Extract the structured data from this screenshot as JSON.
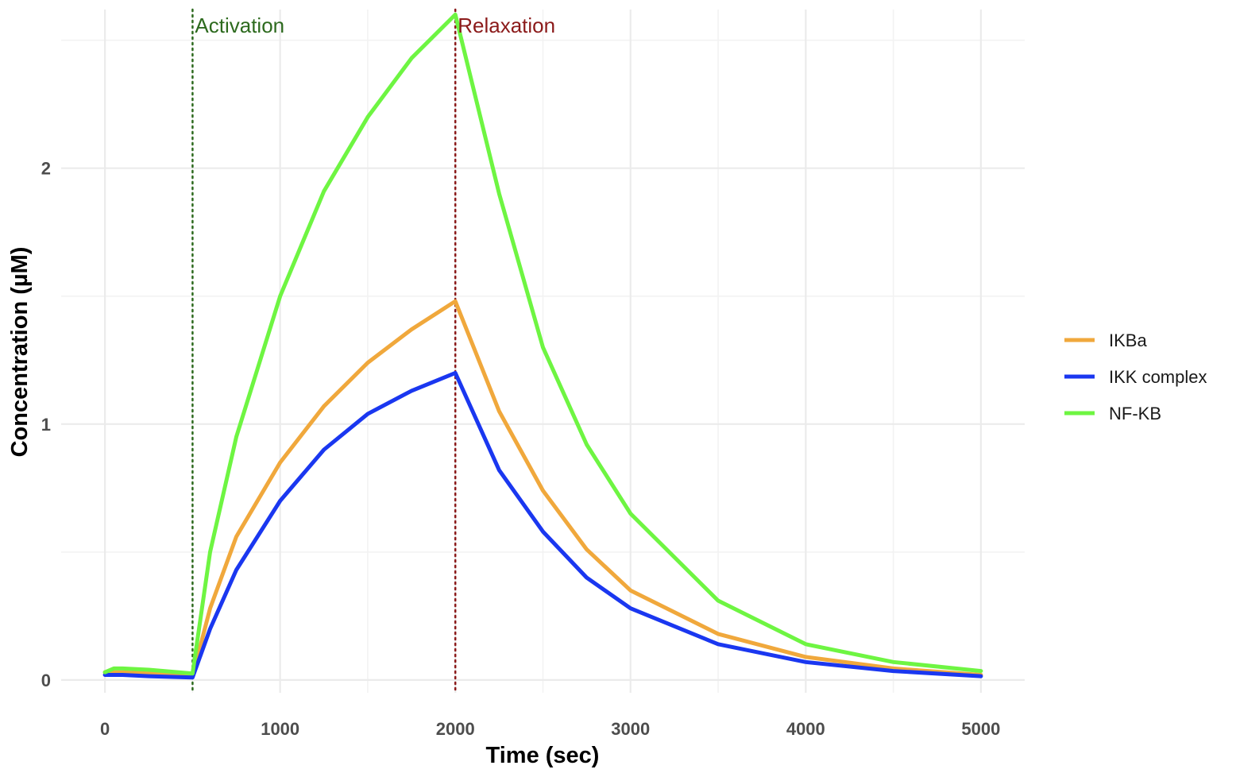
{
  "chart_data": {
    "type": "line",
    "xlabel": "Time (sec)",
    "ylabel": "Concentration (µM)",
    "xlim": [
      -250,
      5250
    ],
    "ylim": [
      -0.05,
      2.62
    ],
    "x_ticks": [
      0,
      1000,
      2000,
      3000,
      4000,
      5000
    ],
    "x_tick_labels": [
      "0",
      "1000",
      "2000",
      "3000",
      "4000",
      "5000"
    ],
    "y_ticks": [
      0,
      1,
      2
    ],
    "y_tick_labels": [
      "0",
      "1",
      "2"
    ],
    "grid": true,
    "legend_position": "right",
    "annotations": [
      {
        "label": "Activation",
        "x": 500,
        "color": "#2d6a1e"
      },
      {
        "label": "Relaxation",
        "x": 2000,
        "color": "#8b1a1a"
      }
    ],
    "series": [
      {
        "name": "IKBa",
        "color": "#f0a83c",
        "x": [
          0,
          100,
          250,
          500,
          600,
          750,
          1000,
          1250,
          1500,
          1750,
          2000,
          2250,
          2500,
          2750,
          3000,
          3500,
          4000,
          4500,
          5000
        ],
        "y": [
          0.03,
          0.03,
          0.025,
          0.015,
          0.28,
          0.56,
          0.85,
          1.07,
          1.24,
          1.37,
          1.48,
          1.05,
          0.74,
          0.51,
          0.35,
          0.18,
          0.09,
          0.045,
          0.02
        ]
      },
      {
        "name": "IKK complex",
        "color": "#1a37f0",
        "x": [
          0,
          100,
          250,
          500,
          600,
          750,
          1000,
          1250,
          1500,
          1750,
          2000,
          2250,
          2500,
          2750,
          3000,
          3500,
          4000,
          4500,
          5000
        ],
        "y": [
          0.02,
          0.02,
          0.015,
          0.01,
          0.2,
          0.43,
          0.7,
          0.9,
          1.04,
          1.13,
          1.2,
          0.82,
          0.58,
          0.4,
          0.28,
          0.14,
          0.07,
          0.035,
          0.015
        ]
      },
      {
        "name": "NF-KB",
        "color": "#6ef542",
        "x": [
          0,
          50,
          100,
          250,
          500,
          600,
          750,
          1000,
          1250,
          1500,
          1750,
          2000,
          2250,
          2500,
          2750,
          3000,
          3500,
          4000,
          4500,
          5000
        ],
        "y": [
          0.03,
          0.045,
          0.045,
          0.04,
          0.025,
          0.5,
          0.95,
          1.5,
          1.91,
          2.2,
          2.43,
          2.6,
          1.9,
          1.3,
          0.92,
          0.65,
          0.31,
          0.14,
          0.07,
          0.035
        ]
      }
    ]
  }
}
